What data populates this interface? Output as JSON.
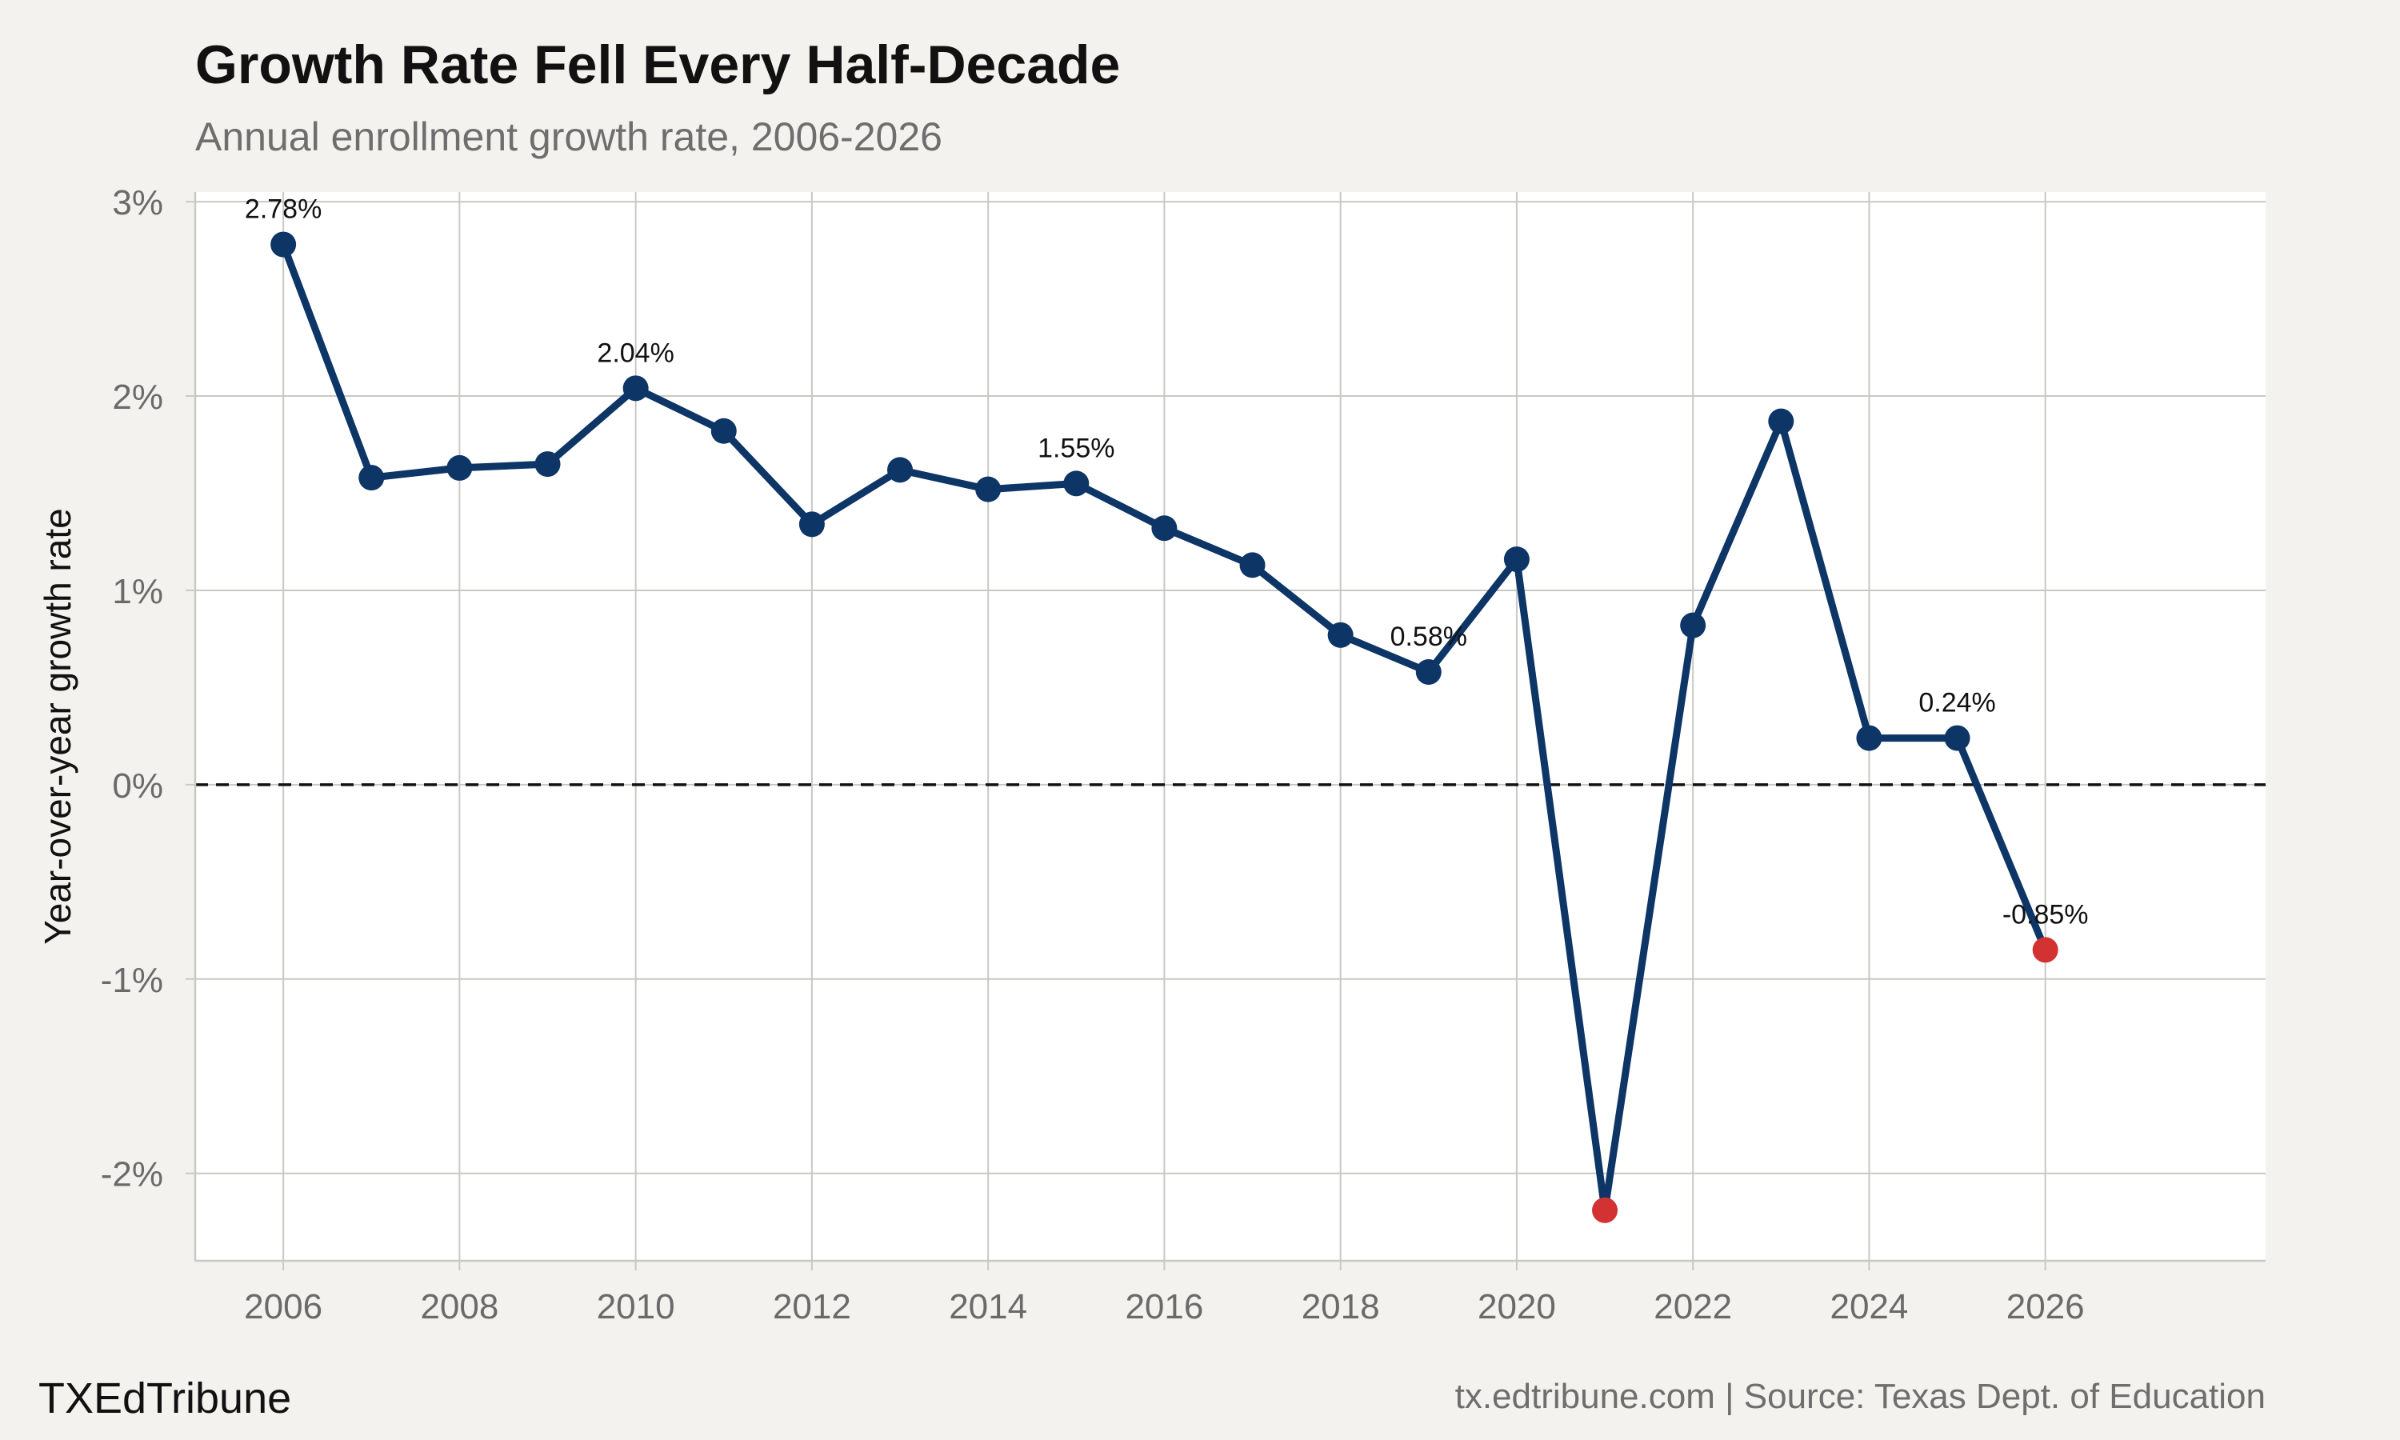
{
  "header": {
    "title": "Growth Rate Fell Every Half-Decade",
    "subtitle": "Annual enrollment growth rate, 2006-2026"
  },
  "footer": {
    "brand": "TXEdTribune",
    "source": "tx.edtribune.com | Source: Texas Dept. of Education"
  },
  "colors": {
    "background": "#f4f2ee",
    "plot_background": "#ffffff",
    "line": "#0d3566",
    "highlight": "#d23232",
    "grid": "#c8c8c4",
    "zero_line": "#111111"
  },
  "chart_data": {
    "type": "line",
    "title": "Growth Rate Fell Every Half-Decade",
    "subtitle": "Annual enrollment growth rate, 2006-2026",
    "xlabel": "",
    "ylabel": "Year-over-year growth rate",
    "xlim": [
      2005,
      2028.5
    ],
    "ylim": [
      -2.45,
      3.05
    ],
    "x_ticks": [
      2006,
      2008,
      2010,
      2012,
      2014,
      2016,
      2018,
      2020,
      2022,
      2024,
      2026
    ],
    "y_ticks": [
      -2,
      -1,
      0,
      1,
      2,
      3
    ],
    "y_tick_labels": [
      "-2%",
      "-1%",
      "0%",
      "1%",
      "2%",
      "3%"
    ],
    "grid": true,
    "reference_line": {
      "y": 0,
      "style": "dashed"
    },
    "series": [
      {
        "x": [
          2006,
          2007,
          2008,
          2009,
          2010,
          2011,
          2012,
          2013,
          2014,
          2015,
          2016,
          2017,
          2018,
          2019,
          2020,
          2021,
          2022,
          2023,
          2024,
          2025,
          2026
        ],
        "y": [
          2.78,
          1.58,
          1.63,
          1.65,
          2.04,
          1.82,
          1.34,
          1.62,
          1.52,
          1.55,
          1.32,
          1.13,
          0.77,
          0.58,
          1.16,
          -2.19,
          0.82,
          1.87,
          0.24,
          0.24,
          -0.85
        ]
      }
    ],
    "highlighted_points": [
      2021,
      2026
    ],
    "annotations": [
      {
        "x": 2006,
        "y": 2.78,
        "text": "2.78%"
      },
      {
        "x": 2010,
        "y": 2.04,
        "text": "2.04%"
      },
      {
        "x": 2015,
        "y": 1.55,
        "text": "1.55%"
      },
      {
        "x": 2019,
        "y": 0.58,
        "text": "0.58%"
      },
      {
        "x": 2025,
        "y": 0.24,
        "text": "0.24%"
      },
      {
        "x": 2026,
        "y": -0.85,
        "text": "-0.85%"
      }
    ]
  }
}
